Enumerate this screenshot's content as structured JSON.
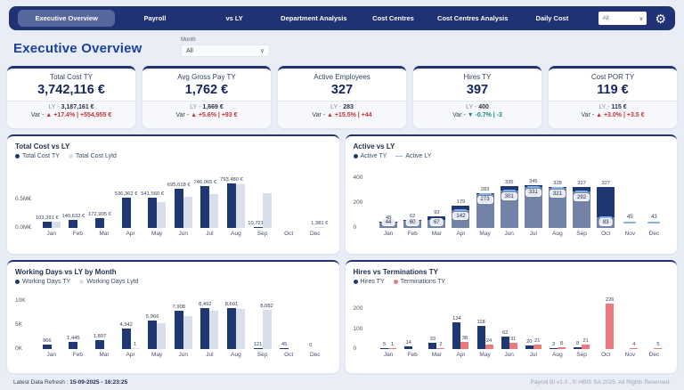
{
  "nav": {
    "tabs": [
      {
        "label": "Executive Overview",
        "active": true
      },
      {
        "label": "Payroll",
        "active": false
      },
      {
        "label": "vs LY",
        "active": false
      },
      {
        "label": "Department Analysis",
        "active": false
      },
      {
        "label": "Cost Centres",
        "active": false
      },
      {
        "label": "Cost Centres Analysis",
        "active": false
      },
      {
        "label": "Daily Cost",
        "active": false
      }
    ],
    "filter_value": "All",
    "gear_icon": "gear"
  },
  "page": {
    "title": "Executive Overview",
    "month_label": "Month",
    "month_value": "All"
  },
  "colors": {
    "navy": "#203174",
    "bar_dark": "#1d3873",
    "bar_light": "#d8dfeb",
    "terminations": "#ea7a7e",
    "ly_line": "#7fb0f0",
    "var_up_red": "#c13438",
    "var_down_teal": "#0e8c7d"
  },
  "kpis": [
    {
      "title": "Total Cost TY",
      "value": "3,742,116 €",
      "ly_prefix": "LY - ",
      "ly_value": "3,187,161 €",
      "var_prefix": "Var - ",
      "arrow": "▲",
      "var_text": "+17.4% | +554,955 €",
      "trend": "up"
    },
    {
      "title": "Avg Gross Pay TY",
      "value": "1,762 €",
      "ly_prefix": "LY - ",
      "ly_value": "1,669 €",
      "var_prefix": "Var - ",
      "arrow": "▲",
      "var_text": "+5.6% | +93 €",
      "trend": "up"
    },
    {
      "title": "Active Employees",
      "value": "327",
      "ly_prefix": "LY - ",
      "ly_value": "283",
      "var_prefix": "Var - ",
      "arrow": "▲",
      "var_text": "+15.5% | +44",
      "trend": "up"
    },
    {
      "title": "Hires TY",
      "value": "397",
      "ly_prefix": "LY - ",
      "ly_value": "400",
      "var_prefix": "Var - ",
      "arrow": "▼",
      "var_text": "-0.7% | -3",
      "trend": "down"
    },
    {
      "title": "Cost POR TY",
      "value": "119 €",
      "ly_prefix": "LY - ",
      "ly_value": "115 €",
      "var_prefix": "Var - ",
      "arrow": "▲",
      "var_text": "+3.0% | +3.5 €",
      "trend": "up"
    }
  ],
  "chart_data": [
    {
      "type": "bar",
      "variant": "grouped",
      "title": "Total Cost vs LY",
      "legend": [
        {
          "label": "Total Cost TY",
          "color": "#1d3873",
          "shape": "dot"
        },
        {
          "label": "Total Cost Lytd",
          "color": "#d8dfeb",
          "shape": "dot"
        }
      ],
      "categories": [
        "Jan",
        "Feb",
        "Mar",
        "Apr",
        "May",
        "Jun",
        "Jul",
        "Aug",
        "Sep",
        "Oct",
        "Dec"
      ],
      "yticks": [
        {
          "label": "0.0M€",
          "value": 0
        },
        {
          "label": "0.5M€",
          "value": 500000
        }
      ],
      "ylim": [
        0,
        950000
      ],
      "series": [
        {
          "name": "Total Cost TY",
          "color": "#1d3873",
          "values": [
            103391,
            140632,
            172905,
            536362,
            541560,
            695618,
            746065,
            793480,
            10721,
            0,
            0
          ],
          "labels": [
            "103,391 €",
            "140,632 €",
            "172,905 €",
            "536,362 €",
            "541,560 €",
            "695,618 €",
            "746,065 €",
            "793,480 €",
            "10,721 €",
            "",
            ""
          ]
        },
        {
          "name": "Total Cost Lytd",
          "color": "#d8dfeb",
          "values": [
            112000,
            0,
            0,
            0,
            465000,
            560000,
            600000,
            775000,
            610000,
            0,
            1381
          ],
          "labels": [
            "",
            "",
            "",
            "",
            "",
            "",
            "",
            "",
            "",
            "",
            "1,381 €"
          ]
        }
      ]
    },
    {
      "type": "bar",
      "variant": "overlay",
      "title": "Active vs LY",
      "legend": [
        {
          "label": "Active TY",
          "color": "#1d3873",
          "shape": "dot"
        },
        {
          "label": "Active LY",
          "color": "#9fb6d8",
          "shape": "line"
        }
      ],
      "categories": [
        "Jan",
        "Feb",
        "Mar",
        "Apr",
        "May",
        "Jun",
        "Jul",
        "Aug",
        "Sep",
        "Oct",
        "Nov",
        "Dec"
      ],
      "yticks": [
        {
          "label": "0",
          "value": 0
        },
        {
          "label": "200",
          "value": 200
        },
        {
          "label": "400",
          "value": 400
        }
      ],
      "ylim": [
        0,
        430
      ],
      "series": [
        {
          "name": "Active TY",
          "color": "#1d3873",
          "values": [
            48,
            62,
            93,
            179,
            283,
            335,
            345,
            328,
            327,
            327,
            0,
            0
          ],
          "labels": [
            "48",
            "62",
            "93",
            "179",
            "283",
            "335",
            "345",
            "328",
            "327",
            "327",
            "",
            ""
          ]
        },
        {
          "name": "Active LY",
          "color": "#7fb0f0",
          "values": [
            44,
            60,
            67,
            142,
            273,
            301,
            331,
            321,
            292,
            83,
            45,
            43
          ],
          "labels": [
            "44",
            "60",
            "67",
            "142",
            "273",
            "301",
            "331",
            "321",
            "292",
            "83",
            "45",
            "43"
          ]
        }
      ]
    },
    {
      "type": "bar",
      "variant": "grouped",
      "title": "Working Days vs LY by Month",
      "legend": [
        {
          "label": "Working Days TY",
          "color": "#1d3873",
          "shape": "dot"
        },
        {
          "label": "Working Days Lytd",
          "color": "#d8dfeb",
          "shape": "dot"
        }
      ],
      "categories": [
        "Jan",
        "Feb",
        "Mar",
        "Apr",
        "May",
        "Jun",
        "Jul",
        "Aug",
        "Sep",
        "Oct",
        "Dec"
      ],
      "yticks": [
        {
          "label": "0K",
          "value": 0
        },
        {
          "label": "5K",
          "value": 5000
        },
        {
          "label": "10K",
          "value": 10000
        }
      ],
      "ylim": [
        0,
        10400
      ],
      "series": [
        {
          "name": "Working Days TY",
          "color": "#1d3873",
          "values": [
            966,
            1445,
            1807,
            4342,
            5966,
            7908,
            8492,
            8601,
            121,
            45,
            0
          ],
          "labels": [
            "966",
            "1,445",
            "1,807",
            "4,342",
            "5,966",
            "7,908",
            "8,492",
            "8,601",
            "121",
            "45",
            "0"
          ]
        },
        {
          "name": "Working Days Lytd",
          "color": "#d8dfeb",
          "values": [
            0,
            0,
            0,
            1,
            5450,
            6900,
            8050,
            8350,
            8082,
            0,
            0
          ],
          "labels": [
            "",
            "",
            "",
            "1",
            "",
            "",
            "",
            "",
            "8,082",
            "",
            ""
          ]
        }
      ]
    },
    {
      "type": "bar",
      "variant": "grouped",
      "title": "Hires vs Terminations TY",
      "legend": [
        {
          "label": "Hires TY",
          "color": "#1d3873",
          "shape": "dot"
        },
        {
          "label": "Terminations TY",
          "color": "#ea7a7e",
          "shape": "dot"
        }
      ],
      "categories": [
        "Jan",
        "Feb",
        "Mar",
        "Apr",
        "May",
        "Jun",
        "Jul",
        "Aug",
        "Sep",
        "Oct",
        "Nov",
        "Dec"
      ],
      "yticks": [
        {
          "label": "0",
          "value": 0
        },
        {
          "label": "100",
          "value": 100
        },
        {
          "label": "200",
          "value": 200
        }
      ],
      "ylim": [
        0,
        250
      ],
      "series": [
        {
          "name": "Hires TY",
          "color": "#1d3873",
          "values": [
            5,
            14,
            33,
            134,
            118,
            62,
            20,
            3,
            8,
            0,
            0,
            0
          ],
          "labels": [
            "5",
            "14",
            "33",
            "134",
            "118",
            "62",
            "20",
            "3",
            "8",
            "",
            "",
            ""
          ]
        },
        {
          "name": "Terminations TY",
          "color": "#ea7a7e",
          "values": [
            1,
            0,
            2,
            38,
            24,
            31,
            21,
            8,
            21,
            226,
            4,
            5
          ],
          "labels": [
            "1",
            "",
            "2",
            "38",
            "24",
            "31",
            "21",
            "8",
            "21",
            "226",
            "4",
            "5"
          ]
        }
      ]
    }
  ],
  "footer": {
    "refresh_prefix": "Latest Data Refresh :  ",
    "refresh_value": "15-09-2025 - 16:23:25",
    "copyright": "Payroll BI v1.0 , © HBIS SA 2025. All Rights Reserved."
  }
}
